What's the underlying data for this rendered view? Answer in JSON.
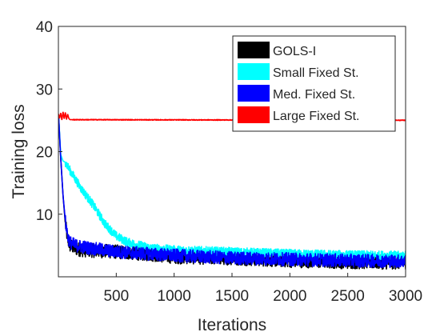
{
  "chart_data": {
    "type": "line",
    "title": "",
    "xlabel": "Iterations",
    "ylabel": "Training loss",
    "xlim": [
      0,
      3000
    ],
    "ylim": [
      0,
      40
    ],
    "xticks": [
      500,
      1000,
      1500,
      2000,
      2500,
      3000
    ],
    "yticks": [
      10,
      20,
      30,
      40
    ],
    "grid": false,
    "box": true,
    "legend_position": "top-right",
    "series": [
      {
        "name": "GOLS-I",
        "color": "#000000",
        "noise": 1.6,
        "points": [
          [
            1,
            26
          ],
          [
            20,
            19
          ],
          [
            40,
            13
          ],
          [
            60,
            8.5
          ],
          [
            80,
            6.0
          ],
          [
            100,
            5.0
          ],
          [
            150,
            4.5
          ],
          [
            200,
            4.3
          ],
          [
            300,
            4.2
          ],
          [
            500,
            4.0
          ],
          [
            800,
            3.6
          ],
          [
            1000,
            3.2
          ],
          [
            1500,
            3.0
          ],
          [
            2000,
            2.6
          ],
          [
            2500,
            2.4
          ],
          [
            3000,
            2.3
          ]
        ]
      },
      {
        "name": "Small Fixed St.",
        "color": "#00ffff",
        "noise": 1.0,
        "points": [
          [
            1,
            26
          ],
          [
            20,
            19.5
          ],
          [
            40,
            18.5
          ],
          [
            60,
            18.3
          ],
          [
            100,
            17
          ],
          [
            200,
            14
          ],
          [
            300,
            11.5
          ],
          [
            400,
            8.5
          ],
          [
            500,
            6.5
          ],
          [
            600,
            5.5
          ],
          [
            800,
            4.6
          ],
          [
            1000,
            4.3
          ],
          [
            1500,
            4.0
          ],
          [
            2000,
            3.7
          ],
          [
            2500,
            3.5
          ],
          [
            3000,
            3.4
          ]
        ]
      },
      {
        "name": "Med. Fixed St.",
        "color": "#0000ff",
        "noise": 1.5,
        "points": [
          [
            1,
            26
          ],
          [
            20,
            19
          ],
          [
            40,
            13
          ],
          [
            60,
            9
          ],
          [
            80,
            6.5
          ],
          [
            100,
            5.5
          ],
          [
            150,
            5.0
          ],
          [
            300,
            4.5
          ],
          [
            500,
            4.0
          ],
          [
            1000,
            3.4
          ],
          [
            1500,
            3.0
          ],
          [
            2000,
            2.8
          ],
          [
            2500,
            2.6
          ],
          [
            3000,
            2.5
          ]
        ]
      },
      {
        "name": "Large Fixed St.",
        "color": "#ff0000",
        "noise": 0.0,
        "points": [
          [
            1,
            26
          ],
          [
            10,
            25.3
          ],
          [
            20,
            26.2
          ],
          [
            30,
            25.0
          ],
          [
            40,
            26.4
          ],
          [
            50,
            25.2
          ],
          [
            60,
            26.3
          ],
          [
            70,
            25.1
          ],
          [
            80,
            26.0
          ],
          [
            90,
            25.3
          ],
          [
            100,
            25.1
          ],
          [
            3000,
            25.0
          ]
        ]
      }
    ]
  }
}
